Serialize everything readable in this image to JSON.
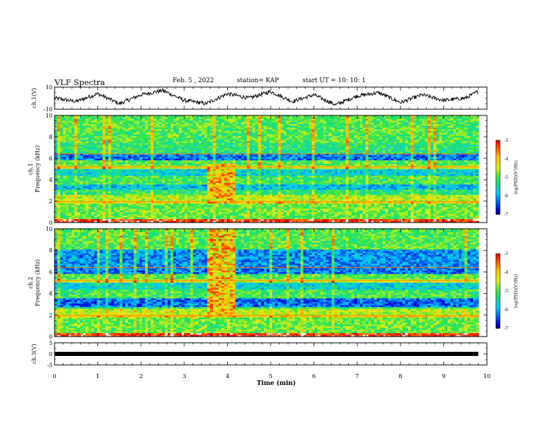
{
  "header": {
    "title": "VLF Spectra",
    "date": "Feb. 5 , 2022",
    "station": "station= KAP",
    "start_ut": "start UT =   10: 10: 1"
  },
  "colors": {
    "trace": "#000000",
    "colormap": [
      "#000000",
      "#0000ff",
      "#00b4ff",
      "#00e040",
      "#ffff00",
      "#ff8000",
      "#ff0000",
      "#ffffff"
    ]
  },
  "chart_data": [
    {
      "type": "line",
      "id": "ch1",
      "ylabel": "ch.1(V)",
      "ylim": [
        -10,
        10
      ],
      "yticks": [
        "10",
        "-10"
      ],
      "xlim": [
        0,
        10
      ],
      "description_values": {
        "x": [
          0,
          0.5,
          1,
          1.5,
          2,
          2.5,
          3,
          3.5,
          4,
          4.5,
          5,
          5.5,
          6,
          6.5,
          7,
          7.5,
          8,
          8.5,
          9,
          9.5,
          9.8
        ],
        "y": [
          0,
          -3,
          4,
          -5,
          3,
          7,
          -2,
          -5,
          4,
          0,
          6,
          -3,
          3,
          -6,
          2,
          5,
          -4,
          3,
          -2,
          0,
          6
        ]
      }
    },
    {
      "type": "heatmap",
      "id": "ch1-spectrogram",
      "ylabel": "ch.1\nFrequency (kHz)",
      "ylim": [
        0,
        10
      ],
      "yticks": [
        "0",
        "2",
        "4",
        "6",
        "8",
        "10"
      ],
      "xlim": [
        0,
        9.8
      ],
      "colorbar": {
        "label": "log(PSD)(V²/Hz)",
        "range": [
          -7,
          -3
        ],
        "ticks": [
          "-3",
          "-4",
          "-5",
          "-6",
          "-7"
        ]
      },
      "disturbance_interval_min": [
        3.5,
        4.15
      ]
    },
    {
      "type": "heatmap",
      "id": "ch2-spectrogram",
      "ylabel": "ch.2\nFrequency (kHz)",
      "ylim": [
        0,
        10
      ],
      "yticks": [
        "0",
        "2",
        "4",
        "6",
        "8",
        "10"
      ],
      "xlim": [
        0,
        9.8
      ],
      "colorbar": {
        "label": "log(PSD)(V²/Hz)",
        "range": [
          -7,
          -3
        ],
        "ticks": [
          "-3",
          "-4",
          "-5",
          "-6",
          "-7"
        ]
      },
      "disturbance_interval_min": [
        3.5,
        4.15
      ]
    },
    {
      "type": "line",
      "id": "ch3",
      "ylabel": "ch.3(V)",
      "ylim": [
        -5,
        5
      ],
      "yticks": [
        "5",
        "0",
        "-5"
      ],
      "xlim": [
        0,
        10
      ],
      "x": [
        0,
        9.8
      ],
      "y": [
        0,
        0
      ]
    }
  ],
  "xaxis": {
    "label": "Time (min)",
    "ticks": [
      "0",
      "1",
      "2",
      "3",
      "4",
      "5",
      "6",
      "7",
      "8",
      "9",
      "10"
    ],
    "range": [
      0,
      10
    ]
  }
}
